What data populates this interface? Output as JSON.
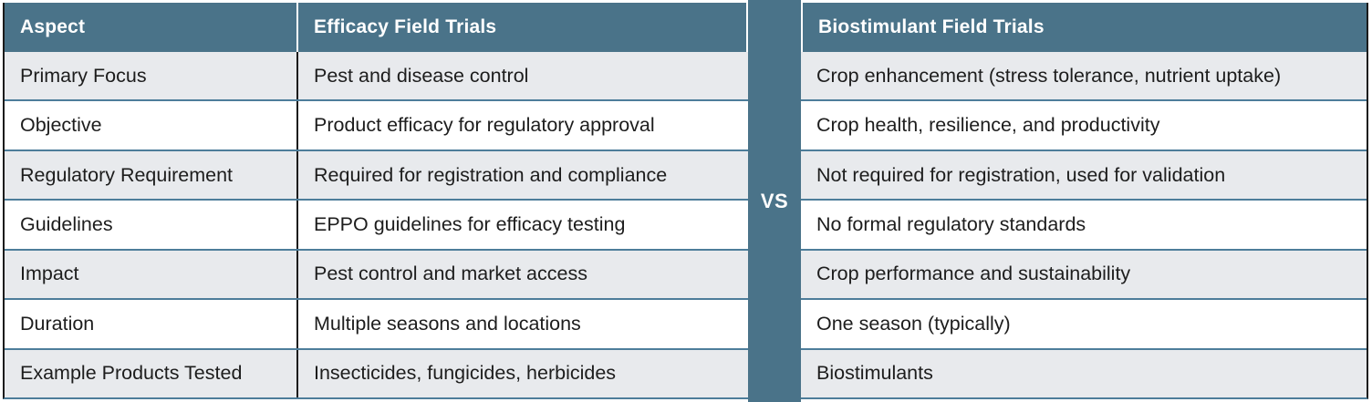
{
  "divider": {
    "label": "VS"
  },
  "colors": {
    "header_bg": "#4a7389",
    "row_alt_bg": "#e8eaed",
    "row_bg": "#ffffff",
    "row_separator": "#4d7d9a",
    "dark_border": "#1b1b1b",
    "header_text": "#ffffff",
    "body_text": "#1d1d1d"
  },
  "left_table": {
    "headers": [
      "Aspect",
      "Efficacy Field Trials"
    ],
    "rows": [
      [
        "Primary Focus",
        "Pest and disease control"
      ],
      [
        "Objective",
        "Product efficacy for regulatory approval"
      ],
      [
        "Regulatory Requirement",
        "Required for registration and compliance"
      ],
      [
        "Guidelines",
        "EPPO guidelines for efficacy testing"
      ],
      [
        "Impact",
        "Pest control and market access"
      ],
      [
        "Duration",
        "Multiple seasons and locations"
      ],
      [
        "Example Products Tested",
        "Insecticides, fungicides, herbicides"
      ]
    ]
  },
  "right_table": {
    "header": "Biostimulant Field Trials",
    "rows": [
      "Crop enhancement (stress tolerance, nutrient uptake)",
      "Crop health, resilience, and productivity",
      "Not required for registration, used for validation",
      "No formal regulatory standards",
      "Crop performance and sustainability",
      "One season (typically)",
      "Biostimulants"
    ]
  }
}
